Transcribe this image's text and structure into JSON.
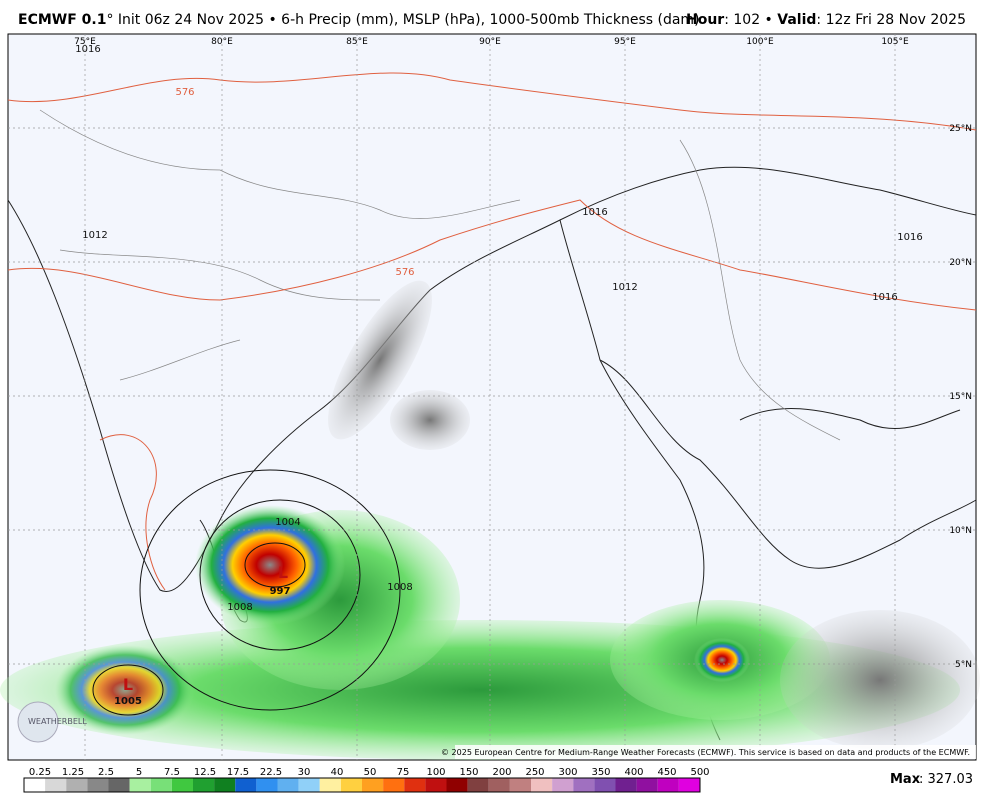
{
  "header": {
    "model": "ECMWF 0.1",
    "description": "° Init 06z 24 Nov 2025 • 6-h Precip (mm), MSLP (hPa), 1000-500mb Thickness (dam)",
    "hour_label": "Hour",
    "hour_value": ": 102 •",
    "valid_label": "Valid",
    "valid_value": ": 12z Fri 28 Nov 2025"
  },
  "map": {
    "longitudes": [
      "75°E",
      "80°E",
      "85°E",
      "90°E",
      "95°E",
      "100°E",
      "105°E"
    ],
    "latitudes": [
      "25°N",
      "20°N",
      "15°N",
      "10°N",
      "5°N"
    ],
    "contour_labels": [
      "1016",
      "1012",
      "1016",
      "1012",
      "1016",
      "1016",
      "1004",
      "1008",
      "1008",
      "997",
      "1005",
      "576",
      "576"
    ],
    "low_marks": [
      "L",
      "L"
    ],
    "logo": "WEATHERBELL",
    "copyright": "© 2025 European Centre for Medium-Range Weather Forecasts (ECMWF). This service is based on data and products of the ECMWF."
  },
  "colorbar": {
    "labels": [
      "0.25",
      "1.25",
      "2.5",
      "5",
      "7.5",
      "12.5",
      "17.5",
      "22.5",
      "30",
      "40",
      "50",
      "75",
      "100",
      "150",
      "200",
      "250",
      "300",
      "350",
      "400",
      "450",
      "500"
    ]
  },
  "footer": {
    "max_label": "Max",
    "max_value": ": 327.03"
  }
}
